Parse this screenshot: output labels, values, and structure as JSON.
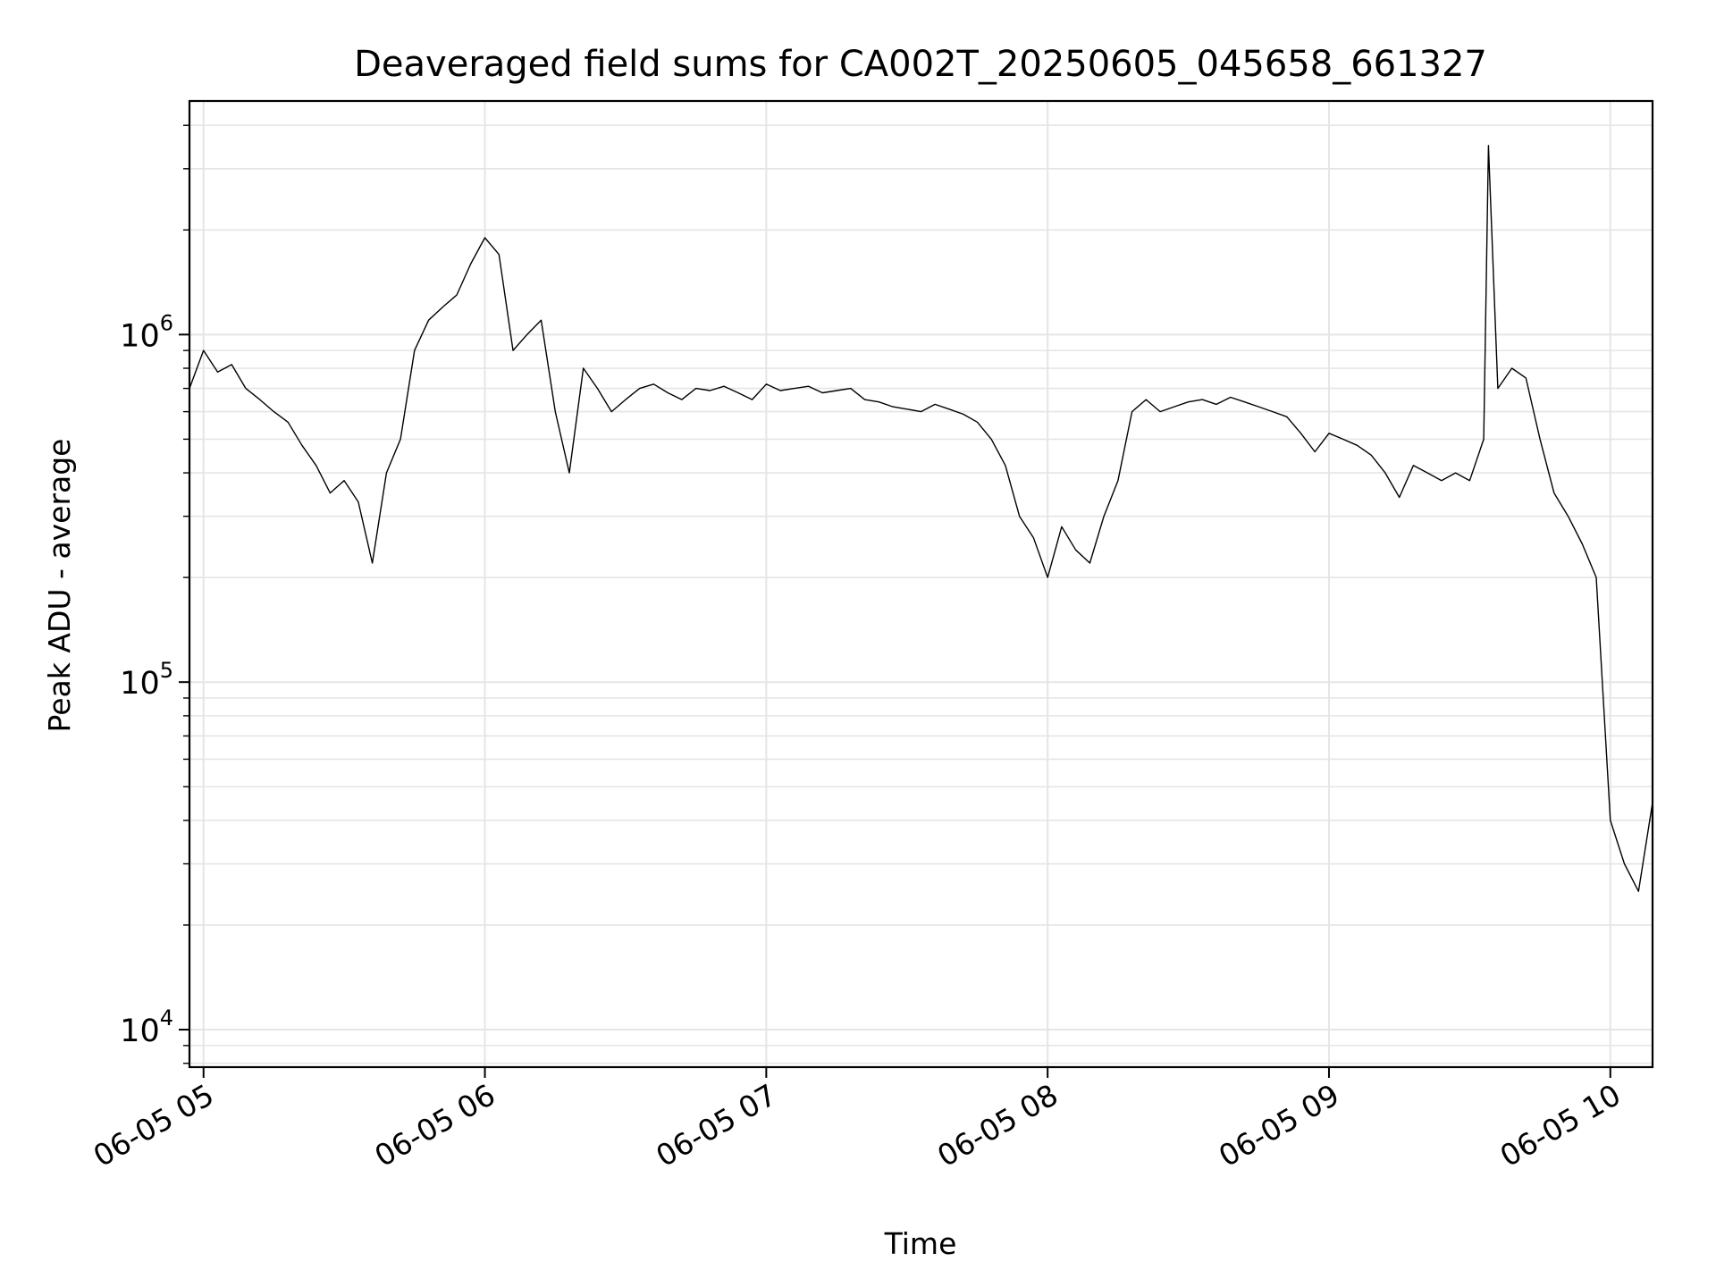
{
  "chart_data": {
    "type": "line",
    "title": "Deaveraged field sums for CA002T_20250605_045658_661327",
    "xlabel": "Time",
    "ylabel": "Peak ADU - average",
    "x_ticks": [
      "06-05 05",
      "06-05 06",
      "06-05 07",
      "06-05 08",
      "06-05 09",
      "06-05 10"
    ],
    "y_ticks": [
      {
        "base": "10",
        "exp": "4",
        "value": 10000
      },
      {
        "base": "10",
        "exp": "5",
        "value": 100000
      },
      {
        "base": "10",
        "exp": "6",
        "value": 1000000
      }
    ],
    "yscale": "log",
    "xlim": [
      "2025-06-05 04:57",
      "2025-06-05 10:09"
    ],
    "ylim": [
      7800,
      4700000
    ],
    "grid": true,
    "line_color": "#000000",
    "grid_color": "#e5e5e5",
    "series": [
      {
        "x": [
          "2025-06-05 04:57",
          "2025-06-05 05:00",
          "2025-06-05 05:03",
          "2025-06-05 05:06",
          "2025-06-05 05:09",
          "2025-06-05 05:12",
          "2025-06-05 05:15",
          "2025-06-05 05:18",
          "2025-06-05 05:21",
          "2025-06-05 05:24",
          "2025-06-05 05:27",
          "2025-06-05 05:30",
          "2025-06-05 05:33",
          "2025-06-05 05:36",
          "2025-06-05 05:39",
          "2025-06-05 05:42",
          "2025-06-05 05:45",
          "2025-06-05 05:48",
          "2025-06-05 05:51",
          "2025-06-05 05:54",
          "2025-06-05 05:57",
          "2025-06-05 06:00",
          "2025-06-05 06:03",
          "2025-06-05 06:06",
          "2025-06-05 06:09",
          "2025-06-05 06:12",
          "2025-06-05 06:15",
          "2025-06-05 06:18",
          "2025-06-05 06:21",
          "2025-06-05 06:24",
          "2025-06-05 06:27",
          "2025-06-05 06:30",
          "2025-06-05 06:33",
          "2025-06-05 06:36",
          "2025-06-05 06:39",
          "2025-06-05 06:42",
          "2025-06-05 06:45",
          "2025-06-05 06:48",
          "2025-06-05 06:51",
          "2025-06-05 06:54",
          "2025-06-05 06:57",
          "2025-06-05 07:00",
          "2025-06-05 07:03",
          "2025-06-05 07:06",
          "2025-06-05 07:09",
          "2025-06-05 07:12",
          "2025-06-05 07:15",
          "2025-06-05 07:18",
          "2025-06-05 07:21",
          "2025-06-05 07:24",
          "2025-06-05 07:27",
          "2025-06-05 07:30",
          "2025-06-05 07:33",
          "2025-06-05 07:36",
          "2025-06-05 07:39",
          "2025-06-05 07:42",
          "2025-06-05 07:45",
          "2025-06-05 07:48",
          "2025-06-05 07:51",
          "2025-06-05 07:54",
          "2025-06-05 07:57",
          "2025-06-05 08:00",
          "2025-06-05 08:03",
          "2025-06-05 08:06",
          "2025-06-05 08:09",
          "2025-06-05 08:12",
          "2025-06-05 08:15",
          "2025-06-05 08:18",
          "2025-06-05 08:21",
          "2025-06-05 08:24",
          "2025-06-05 08:27",
          "2025-06-05 08:30",
          "2025-06-05 08:33",
          "2025-06-05 08:36",
          "2025-06-05 08:39",
          "2025-06-05 08:42",
          "2025-06-05 08:45",
          "2025-06-05 08:48",
          "2025-06-05 08:51",
          "2025-06-05 08:54",
          "2025-06-05 08:57",
          "2025-06-05 09:00",
          "2025-06-05 09:03",
          "2025-06-05 09:06",
          "2025-06-05 09:09",
          "2025-06-05 09:12",
          "2025-06-05 09:15",
          "2025-06-05 09:18",
          "2025-06-05 09:21",
          "2025-06-05 09:24",
          "2025-06-05 09:27",
          "2025-06-05 09:30",
          "2025-06-05 09:33",
          "2025-06-05 09:34",
          "2025-06-05 09:36",
          "2025-06-05 09:39",
          "2025-06-05 09:42",
          "2025-06-05 09:45",
          "2025-06-05 09:48",
          "2025-06-05 09:51",
          "2025-06-05 09:54",
          "2025-06-05 09:57",
          "2025-06-05 10:00",
          "2025-06-05 10:03",
          "2025-06-05 10:06",
          "2025-06-05 10:09"
        ],
        "y": [
          700000,
          900000,
          780000,
          820000,
          700000,
          650000,
          600000,
          560000,
          480000,
          420000,
          350000,
          380000,
          330000,
          220000,
          400000,
          500000,
          900000,
          1100000,
          1200000,
          1300000,
          1600000,
          1900000,
          1700000,
          900000,
          1000000,
          1100000,
          600000,
          400000,
          800000,
          700000,
          600000,
          650000,
          700000,
          720000,
          680000,
          650000,
          700000,
          690000,
          710000,
          680000,
          650000,
          720000,
          690000,
          700000,
          710000,
          680000,
          690000,
          700000,
          650000,
          640000,
          620000,
          610000,
          600000,
          630000,
          610000,
          590000,
          560000,
          500000,
          420000,
          300000,
          260000,
          200000,
          280000,
          240000,
          220000,
          300000,
          380000,
          600000,
          650000,
          600000,
          620000,
          640000,
          650000,
          630000,
          660000,
          640000,
          620000,
          600000,
          580000,
          520000,
          460000,
          520000,
          500000,
          480000,
          450000,
          400000,
          340000,
          420000,
          400000,
          380000,
          400000,
          380000,
          500000,
          3500000,
          700000,
          800000,
          750000,
          500000,
          350000,
          300000,
          250000,
          200000,
          40000,
          30000,
          25000,
          45000
        ]
      }
    ]
  }
}
